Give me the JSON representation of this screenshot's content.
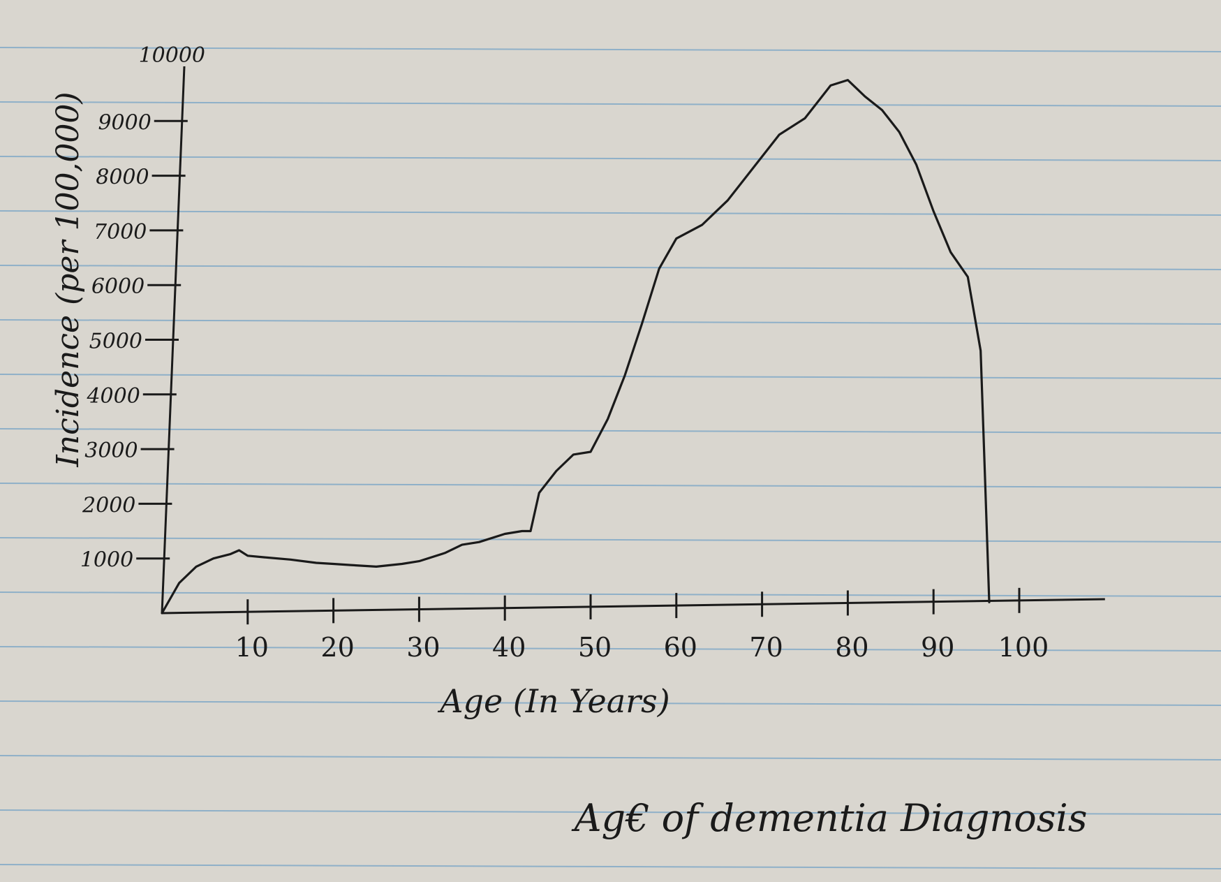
{
  "paper": {
    "background": "#d9d6cf",
    "rule_color": "#8fb0c8",
    "ink_color": "#1a1a1a"
  },
  "chart_data": {
    "type": "line",
    "title": "Ag€ of dementia Diagnosis",
    "xlabel": "Age (In Years)",
    "ylabel": "Incidence (per 100,000)",
    "xlim": [
      0,
      110
    ],
    "ylim": [
      0,
      10000
    ],
    "x_ticks": [
      10,
      20,
      30,
      40,
      50,
      60,
      70,
      80,
      90,
      100
    ],
    "x_tick_labels": [
      "10",
      "20",
      "30",
      "40",
      "50",
      "60",
      "70",
      "80",
      "90",
      "100"
    ],
    "y_ticks": [
      1000,
      2000,
      3000,
      4000,
      5000,
      6000,
      7000,
      8000,
      9000,
      10000
    ],
    "y_tick_labels": [
      "1000",
      "2000",
      "3000",
      "4000",
      "5000",
      "6000",
      "7000",
      "8000",
      "9000",
      "10000"
    ],
    "grid": false,
    "series": [
      {
        "x": [
          0,
          2,
          4,
          6,
          8,
          9,
          10,
          12,
          15,
          18,
          20,
          22,
          25,
          28,
          30,
          33,
          35,
          37,
          40,
          42,
          43,
          44,
          46,
          48,
          50,
          52,
          54,
          56,
          58,
          60,
          63,
          66,
          69,
          72,
          75,
          78,
          80,
          82,
          84,
          86,
          88,
          90,
          92,
          94,
          95.5,
          96,
          96.5
        ],
        "y": [
          0,
          550,
          850,
          1000,
          1080,
          1150,
          1050,
          1020,
          980,
          920,
          900,
          880,
          850,
          900,
          950,
          1100,
          1250,
          1300,
          1450,
          1500,
          1500,
          2200,
          2600,
          2900,
          2950,
          3550,
          4350,
          5300,
          6300,
          6850,
          7100,
          7550,
          8150,
          8750,
          9050,
          9650,
          9750,
          9450,
          9200,
          8800,
          8200,
          7350,
          6600,
          6150,
          4800,
          2500,
          200
        ]
      }
    ]
  }
}
